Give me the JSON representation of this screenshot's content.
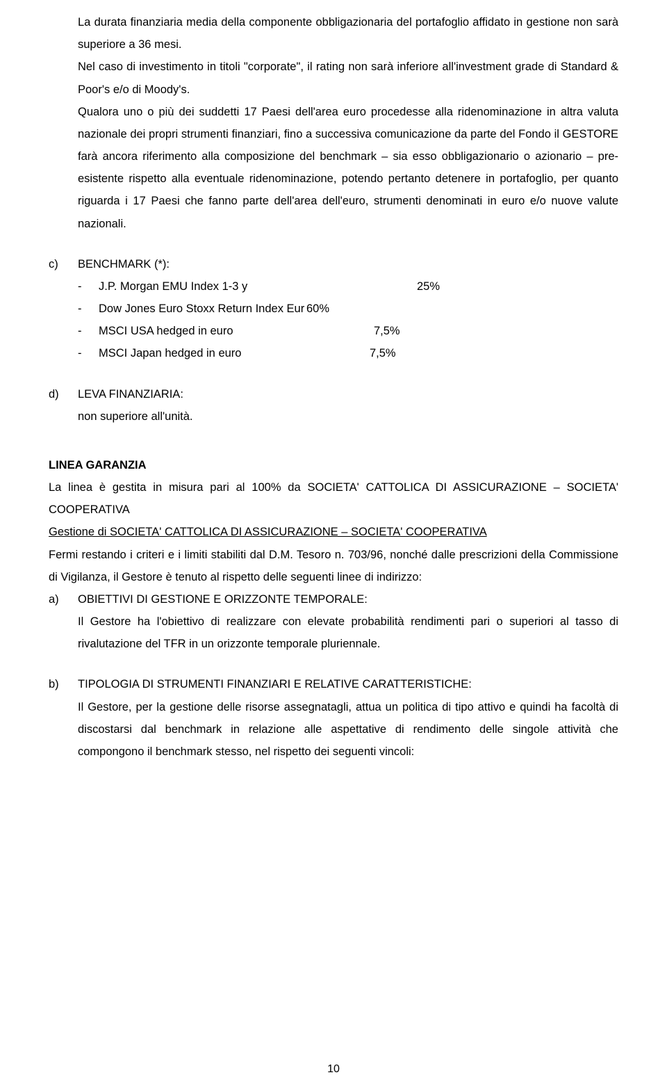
{
  "intro": {
    "p1": "La durata finanziaria media della componente obbligazionaria del portafoglio affidato in gestione non sarà superiore a 36 mesi.",
    "p2": "Nel caso di investimento in titoli \"corporate\", il rating non sarà inferiore all'investment grade di Standard & Poor's e/o di Moody's.",
    "p3": "Qualora uno o più dei suddetti 17 Paesi dell'area euro procedesse alla ridenominazione in altra valuta nazionale dei propri strumenti finanziari, fino a successiva comunicazione da parte del Fondo il GESTORE farà ancora riferimento alla composizione del benchmark – sia esso obbligazionario o azionario – pre-esistente rispetto alla eventuale ridenominazione, potendo pertanto detenere in portafoglio, per quanto riguarda i 17 Paesi che fanno parte dell'area dell'euro, strumenti denominati in euro e/o nuove valute nazionali."
  },
  "section_c": {
    "marker": "c)",
    "title": "BENCHMARK (*):",
    "items": [
      {
        "dash": "-",
        "name": "J.P. Morgan EMU Index 1-3 y",
        "val": "25%"
      },
      {
        "dash": "-",
        "name": "Dow Jones Euro Stoxx Return Index Eur",
        "val": "60%"
      },
      {
        "dash": "-",
        "name": "MSCI USA hedged in euro",
        "val": "7,5%"
      },
      {
        "dash": "-",
        "name": "MSCI Japan hedged in euro",
        "val": "7,5%"
      }
    ]
  },
  "section_d": {
    "marker": "d)",
    "title": "LEVA FINANZIARIA:",
    "body": "non superiore all'unità."
  },
  "linea": {
    "heading": "LINEA GARANZIA",
    "p1": "La linea è gestita in misura pari al 100% da SOCIETA' CATTOLICA DI ASSICURAZIONE – SOCIETA' COOPERATIVA",
    "p2": "Gestione di SOCIETA' CATTOLICA DI ASSICURAZIONE – SOCIETA' COOPERATIVA",
    "p3": "Fermi restando i criteri e i limiti stabiliti dal D.M. Tesoro n. 703/96, nonché dalle prescrizioni della Commissione di Vigilanza, il Gestore è tenuto al rispetto delle seguenti linee di indirizzo:"
  },
  "section_a": {
    "marker": "a)",
    "title": "OBIETTIVI DI GESTIONE E ORIZZONTE TEMPORALE:",
    "body": "Il Gestore ha l'obiettivo di realizzare con elevate probabilità rendimenti pari o superiori al tasso di rivalutazione del TFR in un orizzonte temporale pluriennale."
  },
  "section_b": {
    "marker": "b)",
    "title": "TIPOLOGIA DI STRUMENTI FINANZIARI E RELATIVE CARATTERISTICHE:",
    "body": "Il Gestore, per la gestione delle risorse assegnatagli, attua un politica di tipo attivo e quindi ha facoltà di discostarsi dal benchmark in relazione alle aspettative di rendimento delle singole attività che compongono il benchmark stesso, nel rispetto dei seguenti vincoli:"
  },
  "page_number": "10"
}
